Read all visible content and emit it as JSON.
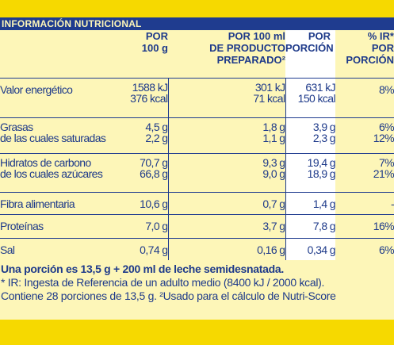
{
  "title": "INFORMACIÓN NUTRICIONAL",
  "headers": {
    "per100": [
      "POR",
      "100 g"
    ],
    "perPrepared": [
      "POR 100 ml",
      "DE PRODUCTO",
      "PREPARADO²"
    ],
    "perPortion": [
      "POR",
      "PORCIÓN"
    ],
    "ir": [
      "% IR*",
      "POR",
      "PORCIÓN"
    ]
  },
  "rows": [
    {
      "labels": [
        "Valor energético"
      ],
      "per100": [
        "1588 kJ",
        "376 kcal"
      ],
      "prepared": [
        "301 kJ",
        "71 kcal"
      ],
      "portion": [
        "631 kJ",
        "150 kcal"
      ],
      "ir": [
        "8%"
      ]
    },
    {
      "labels": [
        "Grasas",
        "de las cuales saturadas"
      ],
      "per100": [
        "4,5 g",
        "2,2 g"
      ],
      "prepared": [
        "1,8 g",
        "1,1 g"
      ],
      "portion": [
        "3,9 g",
        "2,3 g"
      ],
      "ir": [
        "6%",
        "12%"
      ]
    },
    {
      "labels": [
        "Hidratos de carbono",
        "de los cuales azúcares"
      ],
      "per100": [
        "70,7 g",
        "66,8 g"
      ],
      "prepared": [
        "9,3 g",
        "9,0 g"
      ],
      "portion": [
        "19,4 g",
        "18,9 g"
      ],
      "ir": [
        "7%",
        "21%"
      ]
    },
    {
      "labels": [
        "Fibra alimentaria"
      ],
      "per100": [
        "10,6 g"
      ],
      "prepared": [
        "0,7 g"
      ],
      "portion": [
        "1,4 g"
      ],
      "ir": [
        "-"
      ]
    },
    {
      "labels": [
        "Proteínas"
      ],
      "per100": [
        "7,0 g"
      ],
      "prepared": [
        "3,7 g"
      ],
      "portion": [
        "7,8 g"
      ],
      "ir": [
        "16%"
      ]
    },
    {
      "labels": [
        "Sal"
      ],
      "per100": [
        "0,74 g"
      ],
      "prepared": [
        "0,16 g"
      ],
      "portion": [
        "0,34 g"
      ],
      "ir": [
        "6%"
      ]
    }
  ],
  "footnotes": {
    "portion": "Una porción es 13,5 g + 200 ml de leche semidesnatada.",
    "ir": "* IR: Ingesta de Referencia de un adulto medio (8400 kJ / 2000 kcal).",
    "contains": "Contiene 28 porciones de 13,5 g. ²Usado para el cálculo de Nutri-Score"
  }
}
